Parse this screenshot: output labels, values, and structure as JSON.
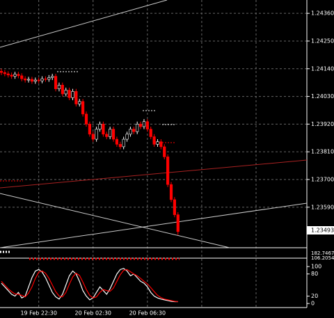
{
  "chart_data": [
    {
      "type": "candlestick",
      "categories": [
        null,
        null,
        null,
        null,
        null,
        null,
        null,
        null,
        null,
        null,
        null,
        "19 Feb 22:30",
        null,
        null,
        null,
        null,
        null,
        null,
        null,
        null,
        null,
        null,
        null,
        null,
        null,
        null,
        null,
        "20 Feb 02:30",
        null,
        null,
        null,
        null,
        null,
        null,
        null,
        null,
        null,
        null,
        null,
        null,
        null,
        null,
        null,
        "20 Feb 06:30",
        null,
        null,
        null,
        null,
        null,
        null,
        null,
        null,
        null
      ],
      "open": [
        1.2413,
        1.24125,
        1.2412,
        1.24115,
        1.2411,
        1.24118,
        1.24112,
        1.241,
        1.24095,
        1.24098,
        1.2409,
        1.24095,
        1.24092,
        1.241,
        1.24098,
        1.24105,
        1.2411,
        1.2406,
        1.24075,
        1.2404,
        1.24055,
        1.24025,
        1.2405,
        1.24,
        1.2401,
        1.2396,
        1.2392,
        1.2388,
        1.2386,
        1.239,
        1.2392,
        1.2388,
        1.2387,
        1.239,
        1.2386,
        1.2384,
        1.2383,
        1.2386,
        1.2388,
        1.239,
        1.2389,
        1.2392,
        1.2391,
        1.2393,
        1.239,
        1.2387,
        1.2384,
        1.2385,
        1.2383,
        1.2379,
        1.2368,
        1.2362,
        1.2356
      ],
      "high": [
        1.2414,
        1.24135,
        1.2413,
        1.24125,
        1.24128,
        1.24128,
        1.24122,
        1.2411,
        1.24108,
        1.24108,
        1.24105,
        1.24105,
        1.2411,
        1.2411,
        1.24115,
        1.2412,
        1.2412,
        1.24085,
        1.24085,
        1.24065,
        1.24065,
        1.2406,
        1.2406,
        1.2402,
        1.2402,
        1.2397,
        1.2393,
        1.2389,
        1.2391,
        1.2393,
        1.2393,
        1.2389,
        1.2391,
        1.2391,
        1.2387,
        1.2385,
        1.2387,
        1.2389,
        1.2391,
        1.2391,
        1.2393,
        1.2393,
        1.2394,
        1.2394,
        1.2391,
        1.2388,
        1.2386,
        1.2386,
        1.2384,
        1.238,
        1.2369,
        1.2363,
        1.2357
      ],
      "low": [
        1.24115,
        1.2411,
        1.24105,
        1.241,
        1.241,
        1.24102,
        1.2409,
        1.24085,
        1.24085,
        1.2408,
        1.2408,
        1.24082,
        1.24082,
        1.24088,
        1.24088,
        1.24095,
        1.2405,
        1.2405,
        1.2403,
        1.2403,
        1.24015,
        1.24015,
        1.2399,
        1.2399,
        1.2395,
        1.2391,
        1.2387,
        1.2385,
        1.2385,
        1.2389,
        1.2387,
        1.2386,
        1.2386,
        1.2385,
        1.2383,
        1.2382,
        1.2382,
        1.2385,
        1.2387,
        1.2388,
        1.2388,
        1.239,
        1.239,
        1.2389,
        1.2386,
        1.2383,
        1.2383,
        1.2382,
        1.2378,
        1.2367,
        1.2361,
        1.2355,
        1.2348
      ],
      "close": [
        1.24125,
        1.2412,
        1.24115,
        1.2411,
        1.24118,
        1.24112,
        1.241,
        1.24095,
        1.24098,
        1.2409,
        1.24095,
        1.24092,
        1.241,
        1.24098,
        1.24105,
        1.2411,
        1.2406,
        1.24075,
        1.2404,
        1.24055,
        1.24025,
        1.2405,
        1.24,
        1.2401,
        1.2396,
        1.2392,
        1.2388,
        1.2386,
        1.239,
        1.2392,
        1.2388,
        1.2387,
        1.239,
        1.2386,
        1.2384,
        1.2383,
        1.2386,
        1.2388,
        1.239,
        1.2389,
        1.2392,
        1.2391,
        1.2393,
        1.239,
        1.2387,
        1.2384,
        1.2385,
        1.2383,
        1.2379,
        1.2368,
        1.2362,
        1.2356,
        1.23493
      ],
      "up_color": "#ffffff",
      "down_color": "#ff0000",
      "ylim": [
        1.23429,
        1.24413
      ],
      "yticks": [
        {
          "value": 1.2436,
          "label": "1.24360"
        },
        {
          "value": 1.2425,
          "label": "1.24250"
        },
        {
          "value": 1.2414,
          "label": "1.24140"
        },
        {
          "value": 1.2403,
          "label": "1.24030"
        },
        {
          "value": 1.2392,
          "label": "1.23920"
        },
        {
          "value": 1.2381,
          "label": "1.23810"
        },
        {
          "value": 1.237,
          "label": "1.23700"
        },
        {
          "value": 1.2359,
          "label": "1.23590"
        }
      ],
      "price_label": "1.23493",
      "grid": true
    },
    {
      "type": "indicator-labels",
      "labels": [
        "182.7467",
        "106.2054"
      ]
    },
    {
      "type": "line",
      "series": [
        {
          "color": "#ffffff",
          "values": [
            55,
            45,
            35,
            25,
            20,
            30,
            15,
            20,
            45,
            70,
            88,
            92,
            85,
            70,
            50,
            30,
            18,
            12,
            25,
            50,
            75,
            88,
            80,
            60,
            35,
            20,
            10,
            15,
            30,
            45,
            35,
            25,
            40,
            60,
            80,
            92,
            95,
            88,
            75,
            80,
            70,
            60,
            55,
            45,
            30,
            20,
            15,
            12,
            10,
            8,
            6,
            5,
            5
          ]
        },
        {
          "color": "#ff0000",
          "values": [
            60,
            50,
            40,
            32,
            26,
            25,
            22,
            18,
            28,
            45,
            68,
            85,
            88,
            82,
            68,
            50,
            32,
            20,
            18,
            30,
            52,
            72,
            82,
            76,
            58,
            38,
            22,
            15,
            18,
            30,
            38,
            35,
            33,
            42,
            60,
            78,
            90,
            92,
            86,
            80,
            75,
            68,
            60,
            53,
            43,
            32,
            22,
            16,
            12,
            10,
            8,
            6,
            5
          ]
        }
      ],
      "ylim": [
        -11,
        119
      ],
      "yticks": [
        100,
        80,
        20,
        0
      ]
    }
  ]
}
